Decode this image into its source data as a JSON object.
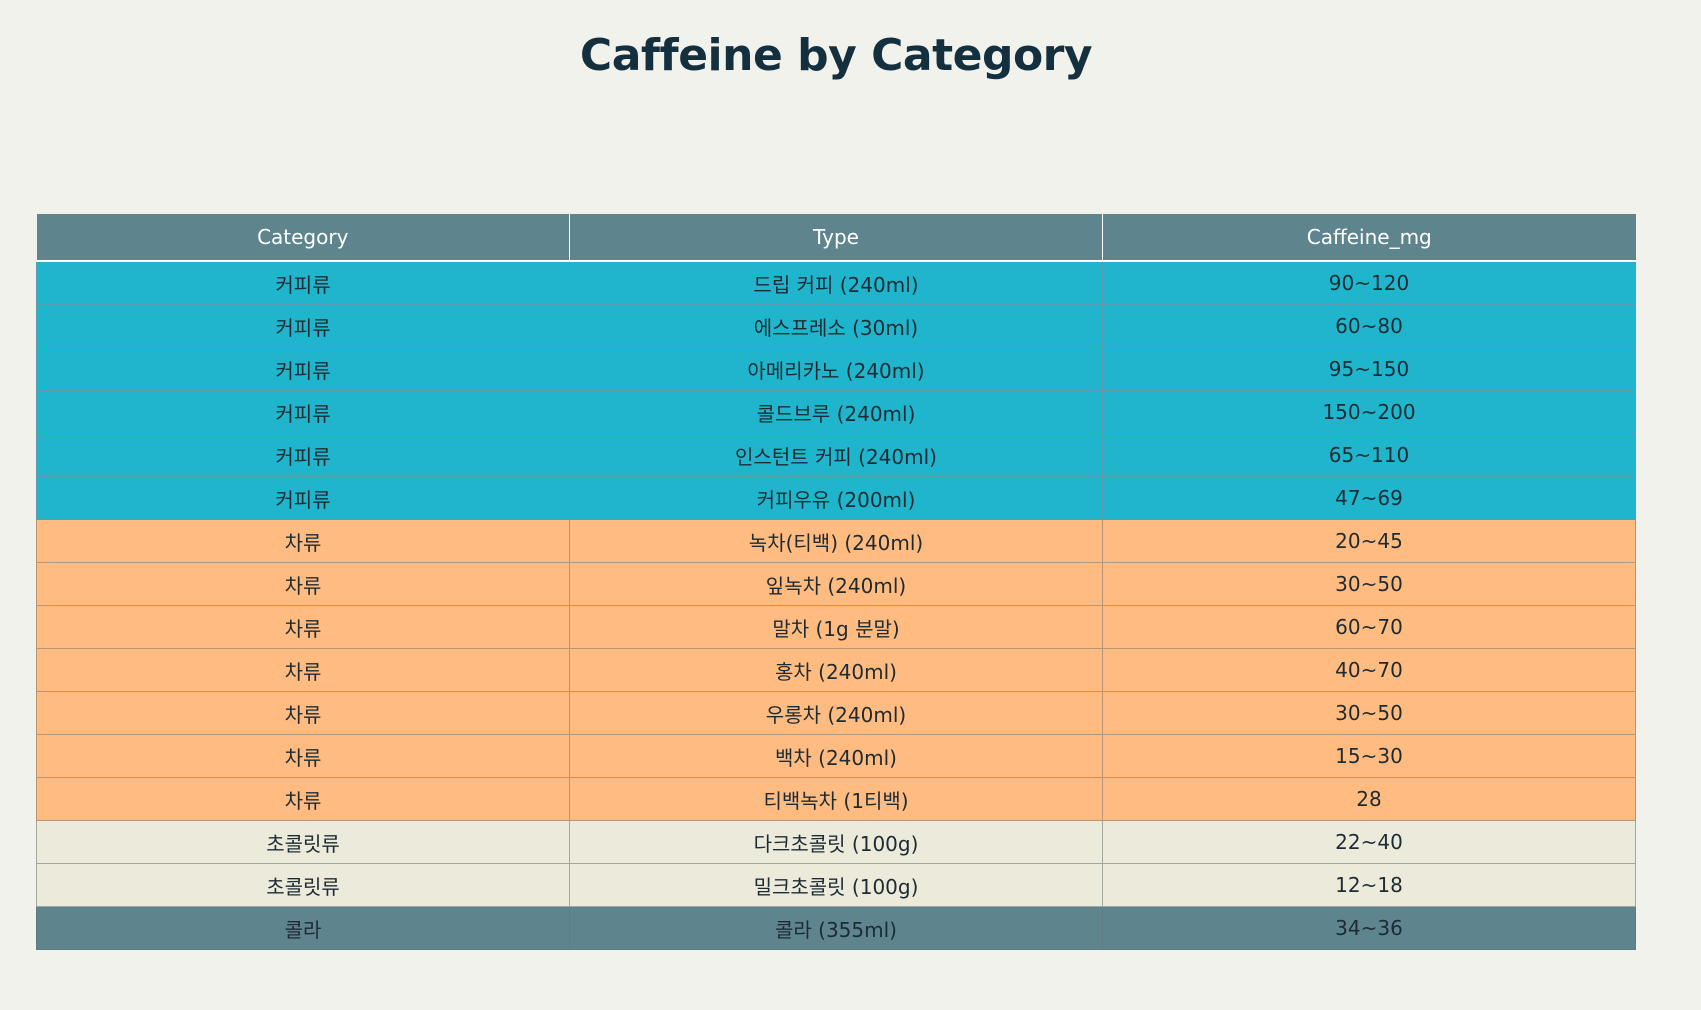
{
  "chart_data": {
    "type": "table",
    "title": "Caffeine by Category",
    "columns": [
      "Category",
      "Type",
      "Caffeine_mg"
    ],
    "rows": [
      {
        "group": "coffee",
        "cells": [
          "커피류",
          "드립 커피 (240ml)",
          "90~120"
        ]
      },
      {
        "group": "coffee",
        "cells": [
          "커피류",
          "에스프레소 (30ml)",
          "60~80"
        ]
      },
      {
        "group": "coffee",
        "cells": [
          "커피류",
          "아메리카노 (240ml)",
          "95~150"
        ]
      },
      {
        "group": "coffee",
        "cells": [
          "커피류",
          "콜드브루 (240ml)",
          "150~200"
        ]
      },
      {
        "group": "coffee",
        "cells": [
          "커피류",
          "인스턴트 커피 (240ml)",
          "65~110"
        ]
      },
      {
        "group": "coffee",
        "cells": [
          "커피류",
          "커피우유 (200ml)",
          "47~69"
        ]
      },
      {
        "group": "tea",
        "cells": [
          "차류",
          "녹차(티백) (240ml)",
          "20~45"
        ]
      },
      {
        "group": "tea",
        "cells": [
          "차류",
          "잎녹차 (240ml)",
          "30~50"
        ]
      },
      {
        "group": "tea",
        "cells": [
          "차류",
          "말차 (1g 분말)",
          "60~70"
        ]
      },
      {
        "group": "tea",
        "cells": [
          "차류",
          "홍차 (240ml)",
          "40~70"
        ]
      },
      {
        "group": "tea",
        "cells": [
          "차류",
          "우롱차 (240ml)",
          "30~50"
        ]
      },
      {
        "group": "tea",
        "cells": [
          "차류",
          "백차 (240ml)",
          "15~30"
        ]
      },
      {
        "group": "tea",
        "cells": [
          "차류",
          "티백녹차 (1티백)",
          "28"
        ]
      },
      {
        "group": "choco",
        "cells": [
          "초콜릿류",
          "다크초콜릿 (100g)",
          "22~40"
        ]
      },
      {
        "group": "choco",
        "cells": [
          "초콜릿류",
          "밀크초콜릿 (100g)",
          "12~18"
        ]
      },
      {
        "group": "cola",
        "cells": [
          "콜라",
          "콜라 (355ml)",
          "34~36"
        ]
      }
    ],
    "colors": {
      "header": "#5e858e",
      "coffee": "#1fb6cd",
      "tea": "#ffbb80",
      "choco": "#eceadb",
      "cola": "#5e858e"
    }
  }
}
